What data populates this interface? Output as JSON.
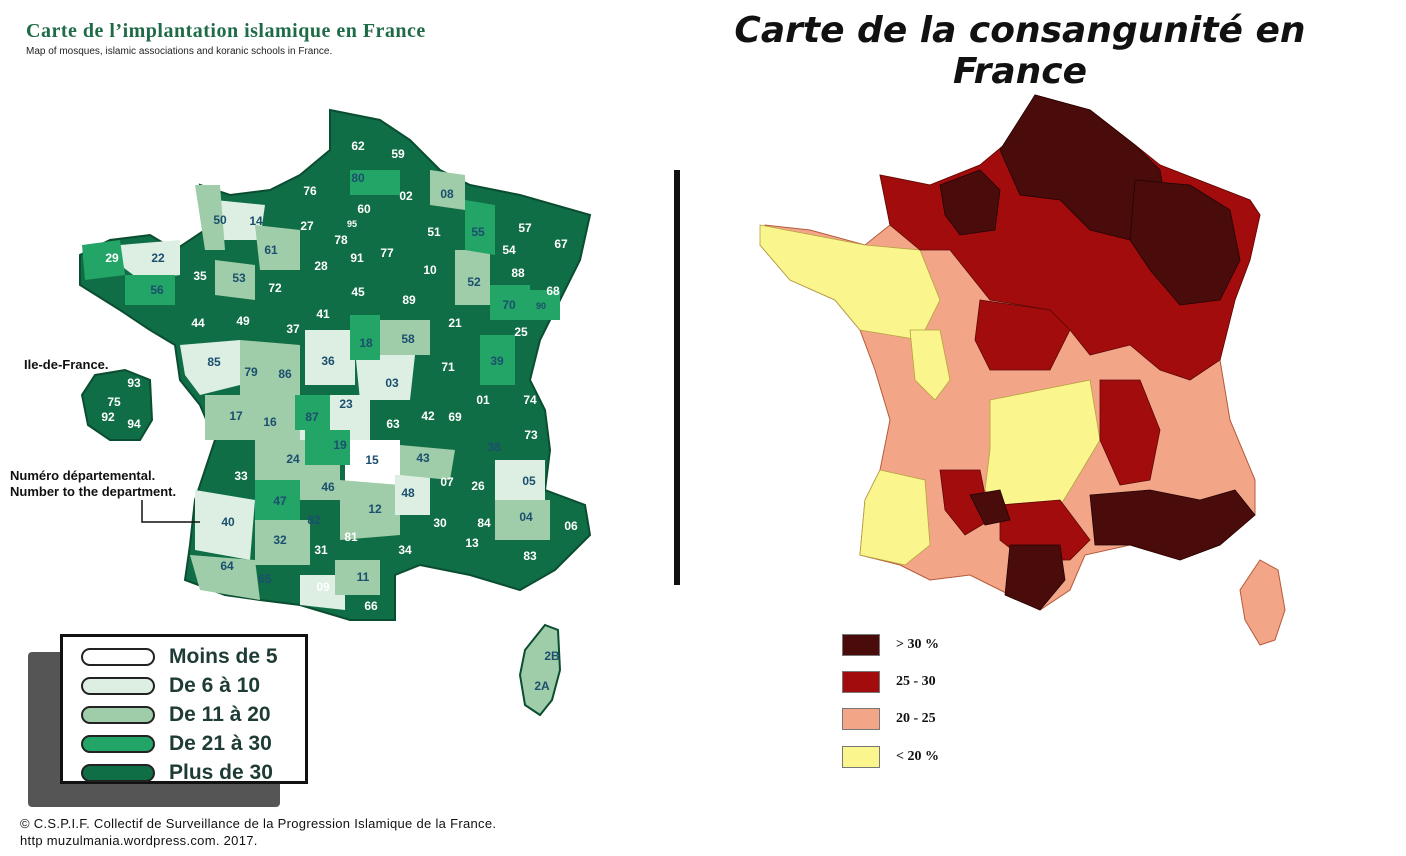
{
  "left_map": {
    "title": "Carte de l’implantation islamique en France",
    "subtitle": "Map of mosques, islamic associations and koranic schools in France.",
    "idf_label": "Ile-de-France.",
    "dept_note_fr": "Numéro départemental.",
    "dept_note_en": "Number to the department.",
    "departments": [
      "62",
      "59",
      "80",
      "76",
      "02",
      "08",
      "60",
      "95",
      "50",
      "14",
      "27",
      "78",
      "55",
      "57",
      "67",
      "51",
      "54",
      "22",
      "29",
      "61",
      "91",
      "77",
      "28",
      "52",
      "88",
      "10",
      "35",
      "53",
      "72",
      "45",
      "68",
      "89",
      "70",
      "90",
      "44",
      "49",
      "41",
      "37",
      "56",
      "18",
      "58",
      "21",
      "25",
      "85",
      "79",
      "86",
      "36",
      "03",
      "71",
      "39",
      "74",
      "17",
      "16",
      "87",
      "23",
      "63",
      "42",
      "69",
      "01",
      "73",
      "24",
      "19",
      "15",
      "43",
      "38",
      "33",
      "46",
      "48",
      "07",
      "26",
      "05",
      "47",
      "82",
      "12",
      "04",
      "06",
      "40",
      "32",
      "81",
      "30",
      "84",
      "13",
      "83",
      "31",
      "34",
      "64",
      "65",
      "09",
      "11",
      "66",
      "2B",
      "2A"
    ],
    "idf_departments": [
      "93",
      "75",
      "92",
      "94"
    ],
    "legend": [
      {
        "label": "Moins de 5",
        "color": "#ffffff"
      },
      {
        "label": "De 6 à 10",
        "color": "#dcefe2"
      },
      {
        "label": "De 11 à 20",
        "color": "#9fcca9"
      },
      {
        "label": "De 21 à 30",
        "color": "#23a567"
      },
      {
        "label": "Plus de 30",
        "color": "#0f6e45"
      }
    ],
    "footer_line1": "© C.S.P.I.F. Collectif de Surveillance de la Progression Islamique de la France.",
    "footer_line2": "http muzulmania.wordpress.com. 2017."
  },
  "right_map": {
    "title": "Carte de la consangunité en France",
    "legend": [
      {
        "label": "> 30 %",
        "color": "#4a0b0b"
      },
      {
        "label": "25 - 30",
        "color": "#a30c0c"
      },
      {
        "label": "20 - 25",
        "color": "#f3a588"
      },
      {
        "label": "< 20 %",
        "color": "#fbf58e"
      }
    ]
  }
}
